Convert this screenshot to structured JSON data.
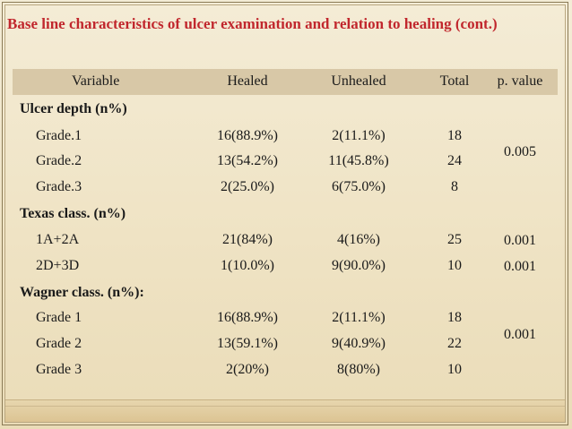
{
  "title": "Base line characteristics of ulcer examination and relation to healing (cont.)",
  "table": {
    "headers": [
      "Variable",
      "Healed",
      "Unhealed",
      "Total",
      "p. value"
    ],
    "sections": [
      {
        "label": "Ulcer depth (n%)",
        "rows": [
          {
            "variable": "Grade.1",
            "healed": "16(88.9%)",
            "unhealed": "2(11.1%)",
            "total": "18"
          },
          {
            "variable": "Grade.2",
            "healed": "13(54.2%)",
            "unhealed": "11(45.8%)",
            "total": "24"
          },
          {
            "variable": "Grade.3",
            "healed": "2(25.0%)",
            "unhealed": "6(75.0%)",
            "total": "8"
          }
        ],
        "p_values": [
          "0.005"
        ]
      },
      {
        "label": "Texas class. (n%)",
        "rows": [
          {
            "variable": "1A+2A",
            "healed": "21(84%)",
            "unhealed": "4(16%)",
            "total": "25"
          },
          {
            "variable": "2D+3D",
            "healed": "1(10.0%)",
            "unhealed": "9(90.0%)",
            "total": "10"
          }
        ],
        "p_values": [
          "0.001",
          "0.001"
        ]
      },
      {
        "label": "Wagner class. (n%):",
        "rows": [
          {
            "variable": "Grade 1",
            "healed": "16(88.9%)",
            "unhealed": "2(11.1%)",
            "total": "18"
          },
          {
            "variable": "Grade 2",
            "healed": "13(59.1%)",
            "unhealed": "9(40.9%)",
            "total": "22"
          },
          {
            "variable": "Grade 3",
            "healed": "2(20%)",
            "unhealed": "8(80%)",
            "total": "10"
          }
        ],
        "p_values": [
          "0.001"
        ]
      }
    ]
  }
}
